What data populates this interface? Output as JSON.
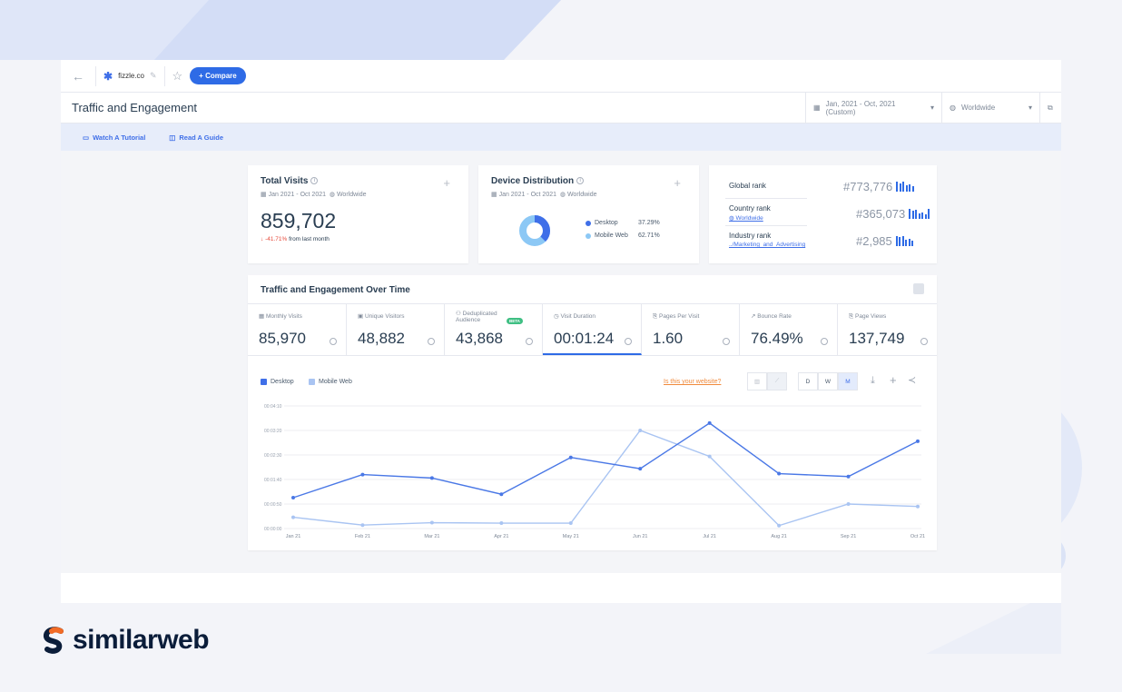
{
  "topbar": {
    "site": "fizzle.co",
    "compare_label": "+ Compare"
  },
  "titlebar": {
    "title": "Traffic and Engagement",
    "date_range": "Jan, 2021 - Oct, 2021 (Custom)",
    "region": "Worldwide"
  },
  "subbar": {
    "tutorial": "Watch A Tutorial",
    "guide": "Read A Guide"
  },
  "total_visits": {
    "title": "Total Visits",
    "dates": "Jan 2021 - Oct 2021",
    "region": "Worldwide",
    "value": "859,702",
    "change": "-41.71%",
    "change_suffix": "from last month"
  },
  "device": {
    "title": "Device Distribution",
    "dates": "Jan 2021 - Oct 2021",
    "region": "Worldwide",
    "desktop_label": "Desktop",
    "desktop_pct": "37.29%",
    "mobile_label": "Mobile Web",
    "mobile_pct": "62.71%",
    "desktop_share": 0.3729
  },
  "ranks": {
    "global_label": "Global rank",
    "global_value": "#773,776",
    "country_label": "Country rank",
    "country_sub": "Worldwide",
    "country_value": "#365,073",
    "industry_label": "Industry rank",
    "industry_sub": "../Marketing_and_Advertising",
    "industry_value": "#2,985"
  },
  "over_time": {
    "title": "Traffic and Engagement Over Time",
    "metrics": [
      {
        "label": "Monthly Visits",
        "value": "85,970"
      },
      {
        "label": "Unique Visitors",
        "value": "48,882"
      },
      {
        "label": "Deduplicated Audience",
        "value": "43,868",
        "badge": "BETA"
      },
      {
        "label": "Visit Duration",
        "value": "00:01:24"
      },
      {
        "label": "Pages Per Visit",
        "value": "1.60"
      },
      {
        "label": "Bounce Rate",
        "value": "76.49%"
      },
      {
        "label": "Page Views",
        "value": "137,749"
      }
    ],
    "legend_desktop": "Desktop",
    "legend_mobile": "Mobile Web",
    "website_link": "Is this your website?",
    "granularity": [
      "D",
      "W",
      "M"
    ]
  },
  "chart_data": {
    "type": "line",
    "categories": [
      "Jan 21",
      "Feb 21",
      "Mar 21",
      "Apr 21",
      "May 21",
      "Jun 21",
      "Jul 21",
      "Aug 21",
      "Sep 21",
      "Oct 21"
    ],
    "y_ticks": [
      "00:00:00",
      "00:00:50",
      "00:01:40",
      "00:02:30",
      "00:03:20",
      "00:04:10"
    ],
    "ylim": [
      0,
      250
    ],
    "series": [
      {
        "name": "Desktop",
        "color": "#4a78e6",
        "values": [
          63,
          110,
          103,
          70,
          145,
          122,
          215,
          112,
          106,
          178
        ]
      },
      {
        "name": "Mobile Web",
        "color": "#a9c4f2",
        "values": [
          23,
          7,
          12,
          11,
          11,
          200,
          147,
          6,
          50,
          45
        ]
      }
    ]
  },
  "brand": {
    "name": "similarweb"
  }
}
